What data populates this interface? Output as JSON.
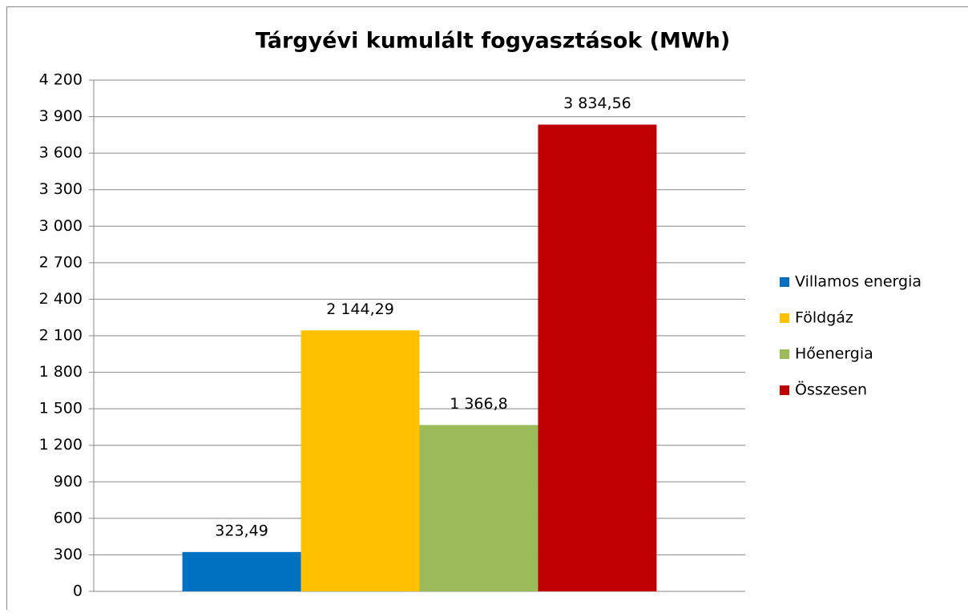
{
  "chart_data": {
    "type": "bar",
    "title": "Tárgyévi kumulált fogyasztások (MWh)",
    "categories": [
      null
    ],
    "series": [
      {
        "name": "Villamos energia",
        "color": "#0070c0",
        "values": [
          323.49
        ],
        "value_labels": [
          "323,49"
        ]
      },
      {
        "name": "Földgáz",
        "color": "#ffc000",
        "values": [
          2144.29
        ],
        "value_labels": [
          "2 144,29"
        ]
      },
      {
        "name": "Hőenergia",
        "color": "#9bbb59",
        "values": [
          1366.8
        ],
        "value_labels": [
          "1 366,8"
        ]
      },
      {
        "name": "Összesen",
        "color": "#c00000",
        "values": [
          3834.56
        ],
        "value_labels": [
          "3 834,56"
        ]
      }
    ],
    "ylim": [
      0,
      4200
    ],
    "yticks": [
      0,
      300,
      600,
      900,
      {
        "value": 1200,
        "label": "1 200"
      },
      {
        "value": 1500,
        "label": "1 500"
      },
      {
        "value": 1800,
        "label": "1 800"
      },
      {
        "value": 2100,
        "label": "2 100"
      },
      {
        "value": 2400,
        "label": "2 400"
      },
      {
        "value": 2700,
        "label": "2 700"
      },
      {
        "value": 3000,
        "label": "3 000"
      },
      {
        "value": 3300,
        "label": "3 300"
      },
      {
        "value": 3600,
        "label": "3 600"
      },
      {
        "value": 3900,
        "label": "3 900"
      },
      {
        "value": 4200,
        "label": "4 200"
      }
    ],
    "grid": true,
    "legend": "right"
  }
}
